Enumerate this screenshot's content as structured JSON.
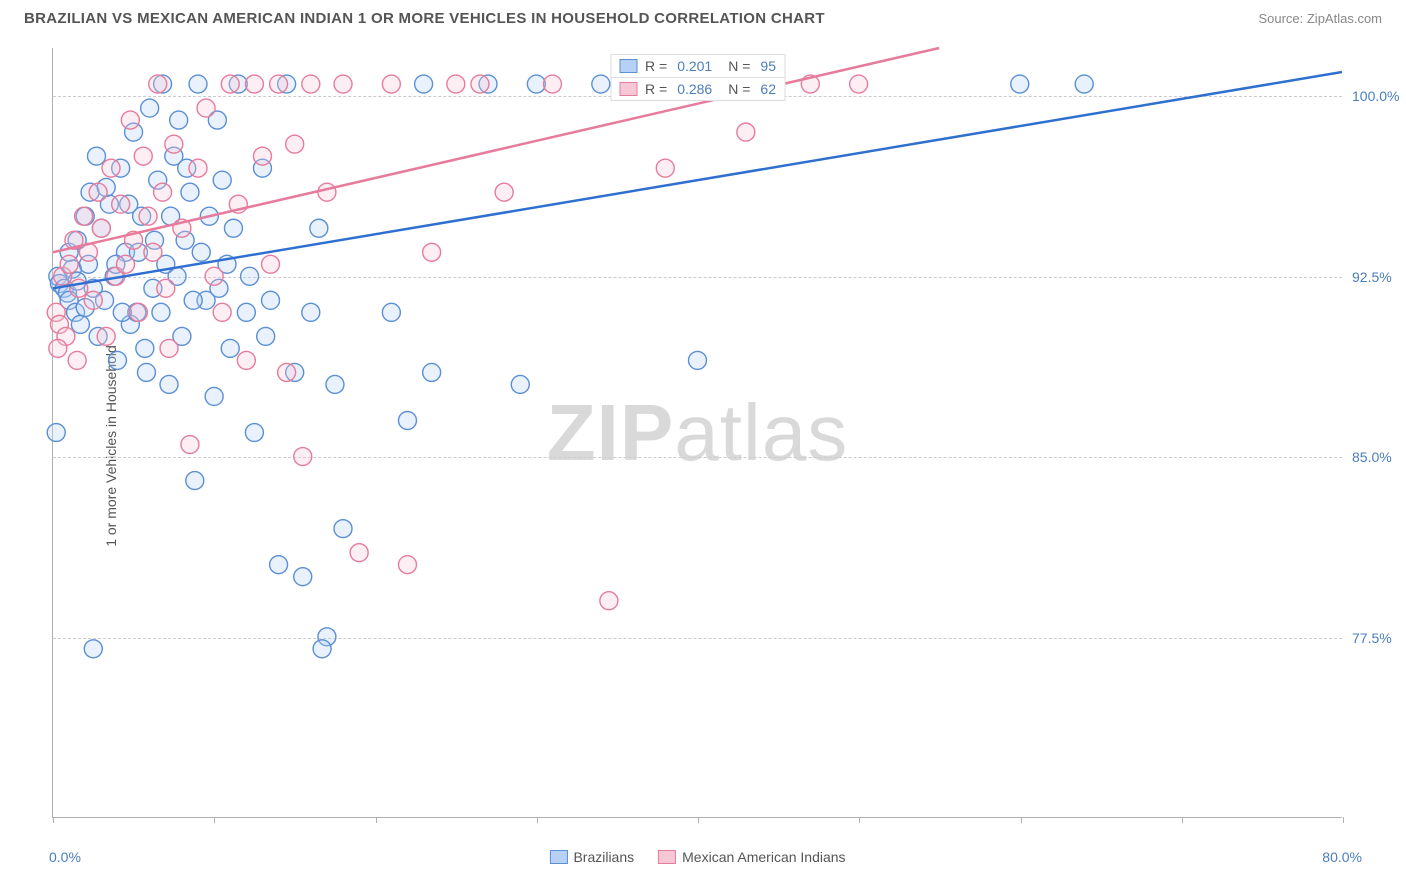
{
  "title": "BRAZILIAN VS MEXICAN AMERICAN INDIAN 1 OR MORE VEHICLES IN HOUSEHOLD CORRELATION CHART",
  "source_label": "Source: ZipAtlas.com",
  "watermark": {
    "part1": "ZIP",
    "part2": "atlas"
  },
  "y_axis_label": "1 or more Vehicles in Household",
  "chart": {
    "type": "scatter",
    "background_color": "#ffffff",
    "grid_color": "#cccccc",
    "axis_color": "#b0b0b0",
    "xlim": [
      0,
      80
    ],
    "ylim": [
      70,
      102
    ],
    "x_ticks": [
      0,
      10,
      20,
      30,
      40,
      50,
      60,
      70,
      80
    ],
    "x_tick_labels": {
      "0": "0.0%",
      "80": "80.0%"
    },
    "y_ticks": [
      77.5,
      85.0,
      92.5,
      100.0
    ],
    "y_tick_labels": [
      "77.5%",
      "85.0%",
      "92.5%",
      "100.0%"
    ],
    "marker_radius": 9,
    "marker_fill_opacity": 0.3,
    "marker_stroke_width": 1.4,
    "line_width": 2.5,
    "series": [
      {
        "name": "Brazilians",
        "color_fill": "#b7d1f4",
        "color_stroke": "#5a8fd6",
        "line_color": "#2f6fd0",
        "R": "0.201",
        "N": "95",
        "trend": {
          "x1": 0,
          "y1": 92.0,
          "x2": 80,
          "y2": 101.0
        },
        "points": [
          [
            0.3,
            92.5
          ],
          [
            0.4,
            92.2
          ],
          [
            0.7,
            92.0
          ],
          [
            0.9,
            91.8
          ],
          [
            1.0,
            91.5
          ],
          [
            1.2,
            92.8
          ],
          [
            1.4,
            91.0
          ],
          [
            1.5,
            92.3
          ],
          [
            1.7,
            90.5
          ],
          [
            2.0,
            91.2
          ],
          [
            2.2,
            93.0
          ],
          [
            2.5,
            92.0
          ],
          [
            2.8,
            90.0
          ],
          [
            3.0,
            94.5
          ],
          [
            3.2,
            91.5
          ],
          [
            3.5,
            95.5
          ],
          [
            3.8,
            92.5
          ],
          [
            4.0,
            89.0
          ],
          [
            4.2,
            97.0
          ],
          [
            4.5,
            93.5
          ],
          [
            4.8,
            90.5
          ],
          [
            5.0,
            98.5
          ],
          [
            5.2,
            91.0
          ],
          [
            5.5,
            95.0
          ],
          [
            5.8,
            88.5
          ],
          [
            6.0,
            99.5
          ],
          [
            6.2,
            92.0
          ],
          [
            6.5,
            96.5
          ],
          [
            6.8,
            100.5
          ],
          [
            7.0,
            93.0
          ],
          [
            7.2,
            88.0
          ],
          [
            7.5,
            97.5
          ],
          [
            7.8,
            99.0
          ],
          [
            8.0,
            90.0
          ],
          [
            8.2,
            94.0
          ],
          [
            8.5,
            96.0
          ],
          [
            8.8,
            84.0
          ],
          [
            9.0,
            100.5
          ],
          [
            9.5,
            91.5
          ],
          [
            10.0,
            87.5
          ],
          [
            10.2,
            99.0
          ],
          [
            10.5,
            96.5
          ],
          [
            10.8,
            93.0
          ],
          [
            11.0,
            89.5
          ],
          [
            11.5,
            100.5
          ],
          [
            12.0,
            91.0
          ],
          [
            12.5,
            86.0
          ],
          [
            13.0,
            97.0
          ],
          [
            13.5,
            91.5
          ],
          [
            14.0,
            80.5
          ],
          [
            14.5,
            100.5
          ],
          [
            15.0,
            88.5
          ],
          [
            15.5,
            80.0
          ],
          [
            16.0,
            91.0
          ],
          [
            16.5,
            94.5
          ],
          [
            17.0,
            77.5
          ],
          [
            17.5,
            88.0
          ],
          [
            18.0,
            82.0
          ],
          [
            21.0,
            91.0
          ],
          [
            22.0,
            86.5
          ],
          [
            23.0,
            100.5
          ],
          [
            23.5,
            88.5
          ],
          [
            27.0,
            100.5
          ],
          [
            29.0,
            88.0
          ],
          [
            30.0,
            100.5
          ],
          [
            34.0,
            100.5
          ],
          [
            40.0,
            89.0
          ],
          [
            60.0,
            100.5
          ],
          [
            64.0,
            100.5
          ],
          [
            0.2,
            86.0
          ],
          [
            1.0,
            93.5
          ],
          [
            1.5,
            94.0
          ],
          [
            2.0,
            95.0
          ],
          [
            2.3,
            96.0
          ],
          [
            2.7,
            97.5
          ],
          [
            3.3,
            96.2
          ],
          [
            3.9,
            93.0
          ],
          [
            4.3,
            91.0
          ],
          [
            4.7,
            95.5
          ],
          [
            5.3,
            93.5
          ],
          [
            5.7,
            89.5
          ],
          [
            6.3,
            94.0
          ],
          [
            6.7,
            91.0
          ],
          [
            7.3,
            95.0
          ],
          [
            7.7,
            92.5
          ],
          [
            8.3,
            97.0
          ],
          [
            8.7,
            91.5
          ],
          [
            9.2,
            93.5
          ],
          [
            9.7,
            95.0
          ],
          [
            10.3,
            92.0
          ],
          [
            11.2,
            94.5
          ],
          [
            12.2,
            92.5
          ],
          [
            13.2,
            90.0
          ],
          [
            16.7,
            77.0
          ],
          [
            2.5,
            77.0
          ]
        ]
      },
      {
        "name": "Mexican American Indians",
        "color_fill": "#f6c7d4",
        "color_stroke": "#e77b9b",
        "line_color": "#e77b9b",
        "R": "0.286",
        "N": "62",
        "trend": {
          "x1": 0,
          "y1": 93.5,
          "x2": 55,
          "y2": 102.0
        },
        "points": [
          [
            0.2,
            91.0
          ],
          [
            0.4,
            90.5
          ],
          [
            0.6,
            92.5
          ],
          [
            0.8,
            90.0
          ],
          [
            1.0,
            93.0
          ],
          [
            1.3,
            94.0
          ],
          [
            1.6,
            92.0
          ],
          [
            1.9,
            95.0
          ],
          [
            2.2,
            93.5
          ],
          [
            2.5,
            91.5
          ],
          [
            2.8,
            96.0
          ],
          [
            3.0,
            94.5
          ],
          [
            3.3,
            90.0
          ],
          [
            3.6,
            97.0
          ],
          [
            3.9,
            92.5
          ],
          [
            4.2,
            95.5
          ],
          [
            4.5,
            93.0
          ],
          [
            4.8,
            99.0
          ],
          [
            5.0,
            94.0
          ],
          [
            5.3,
            91.0
          ],
          [
            5.6,
            97.5
          ],
          [
            5.9,
            95.0
          ],
          [
            6.2,
            93.5
          ],
          [
            6.5,
            100.5
          ],
          [
            6.8,
            96.0
          ],
          [
            7.0,
            92.0
          ],
          [
            7.5,
            98.0
          ],
          [
            8.0,
            94.5
          ],
          [
            8.5,
            85.5
          ],
          [
            9.0,
            97.0
          ],
          [
            9.5,
            99.5
          ],
          [
            10.0,
            92.5
          ],
          [
            10.5,
            91.0
          ],
          [
            11.0,
            100.5
          ],
          [
            11.5,
            95.5
          ],
          [
            12.0,
            89.0
          ],
          [
            12.5,
            100.5
          ],
          [
            13.0,
            97.5
          ],
          [
            13.5,
            93.0
          ],
          [
            14.0,
            100.5
          ],
          [
            14.5,
            88.5
          ],
          [
            15.0,
            98.0
          ],
          [
            15.5,
            85.0
          ],
          [
            16.0,
            100.5
          ],
          [
            17.0,
            96.0
          ],
          [
            18.0,
            100.5
          ],
          [
            19.0,
            81.0
          ],
          [
            21.0,
            100.5
          ],
          [
            22.0,
            80.5
          ],
          [
            23.5,
            93.5
          ],
          [
            25.0,
            100.5
          ],
          [
            26.5,
            100.5
          ],
          [
            28.0,
            96.0
          ],
          [
            31.0,
            100.5
          ],
          [
            34.5,
            79.0
          ],
          [
            38.0,
            97.0
          ],
          [
            43.0,
            98.5
          ],
          [
            47.0,
            100.5
          ],
          [
            50.0,
            100.5
          ],
          [
            0.3,
            89.5
          ],
          [
            1.5,
            89.0
          ],
          [
            7.2,
            89.5
          ]
        ]
      }
    ],
    "legend_bottom": [
      {
        "label": "Brazilians",
        "fill": "#b7d1f4",
        "stroke": "#5a8fd6"
      },
      {
        "label": "Mexican American Indians",
        "fill": "#f6c7d4",
        "stroke": "#e77b9b"
      }
    ]
  }
}
